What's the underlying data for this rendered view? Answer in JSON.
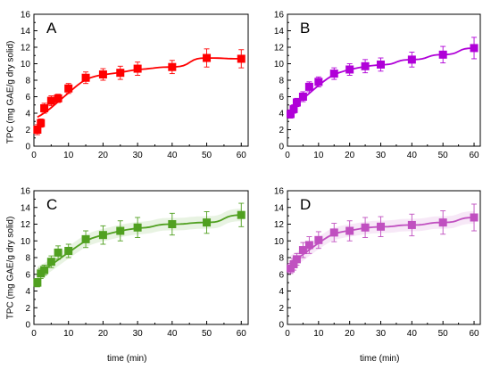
{
  "chart_data": [
    {
      "type": "scatter",
      "panel_label": "A",
      "ylabel": "TPC (mg GAE/g dry solid)",
      "xlabel": "",
      "xlim": [
        0,
        62
      ],
      "ylim": [
        0,
        16
      ],
      "xticks": [
        "0",
        "10",
        "20",
        "30",
        "40",
        "50",
        "60"
      ],
      "yticks": [
        "0",
        "2",
        "4",
        "6",
        "8",
        "10",
        "12",
        "14",
        "16"
      ],
      "color": "#ff0000",
      "x": [
        1,
        2,
        3,
        5,
        7,
        10,
        15,
        20,
        25,
        30,
        40,
        50,
        60
      ],
      "y": [
        2.0,
        2.8,
        4.6,
        5.5,
        5.8,
        7.0,
        8.3,
        8.7,
        8.9,
        9.4,
        9.6,
        10.7,
        10.6
      ],
      "err": [
        0.6,
        0.5,
        0.6,
        0.6,
        0.5,
        0.6,
        0.7,
        0.7,
        0.8,
        0.8,
        0.8,
        1.1,
        1.1
      ],
      "fit": true,
      "fit_band": false
    },
    {
      "type": "scatter",
      "panel_label": "B",
      "ylabel": "",
      "xlabel": "",
      "xlim": [
        0,
        62
      ],
      "ylim": [
        0,
        16
      ],
      "xticks": [
        "0",
        "10",
        "20",
        "30",
        "40",
        "50",
        "60"
      ],
      "yticks": [
        "0",
        "2",
        "4",
        "6",
        "8",
        "10",
        "12",
        "14",
        "16"
      ],
      "color": "#b000d8",
      "x": [
        1,
        2,
        3,
        5,
        7,
        10,
        15,
        20,
        25,
        30,
        40,
        50,
        60
      ],
      "y": [
        3.9,
        4.5,
        5.3,
        6.0,
        7.2,
        7.8,
        8.8,
        9.3,
        9.7,
        9.9,
        10.5,
        11.1,
        11.9
      ],
      "err": [
        0.5,
        0.5,
        0.5,
        0.6,
        0.6,
        0.6,
        0.7,
        0.7,
        0.8,
        0.8,
        0.9,
        1.0,
        1.3
      ],
      "fit": true,
      "fit_band": false
    },
    {
      "type": "scatter",
      "panel_label": "C",
      "ylabel": "TPC (mg GAE/g dry solid)",
      "xlabel": "time (min)",
      "xlim": [
        0,
        62
      ],
      "ylim": [
        0,
        16
      ],
      "xticks": [
        "0",
        "10",
        "20",
        "30",
        "40",
        "50",
        "60"
      ],
      "yticks": [
        "0",
        "2",
        "4",
        "6",
        "8",
        "10",
        "12",
        "14",
        "16"
      ],
      "color": "#50a020",
      "x": [
        1,
        2,
        3,
        5,
        7,
        10,
        15,
        20,
        25,
        30,
        40,
        50,
        60
      ],
      "y": [
        5.0,
        6.1,
        6.5,
        7.5,
        8.6,
        8.8,
        10.2,
        10.7,
        11.2,
        11.6,
        12.0,
        12.2,
        13.1
      ],
      "err": [
        0.5,
        0.6,
        0.6,
        0.7,
        0.8,
        0.8,
        1.0,
        1.1,
        1.2,
        1.2,
        1.3,
        1.3,
        1.4
      ],
      "fit": true,
      "fit_band": true
    },
    {
      "type": "scatter",
      "panel_label": "D",
      "ylabel": "",
      "xlabel": "time (min)",
      "xlim": [
        0,
        62
      ],
      "ylim": [
        0,
        16
      ],
      "xticks": [
        "0",
        "10",
        "20",
        "30",
        "40",
        "50",
        "60"
      ],
      "yticks": [
        "0",
        "2",
        "4",
        "6",
        "8",
        "10",
        "12",
        "14",
        "16"
      ],
      "color": "#c050c0",
      "x": [
        1,
        2,
        3,
        5,
        7,
        10,
        15,
        20,
        25,
        30,
        40,
        50,
        60
      ],
      "y": [
        6.7,
        7.2,
        7.8,
        8.9,
        9.5,
        10.1,
        11.0,
        11.2,
        11.6,
        11.7,
        11.9,
        12.2,
        12.8
      ],
      "err": [
        0.6,
        0.7,
        0.7,
        0.9,
        1.0,
        1.0,
        1.1,
        1.2,
        1.2,
        1.2,
        1.3,
        1.4,
        1.6
      ],
      "fit": true,
      "fit_band": true
    }
  ]
}
